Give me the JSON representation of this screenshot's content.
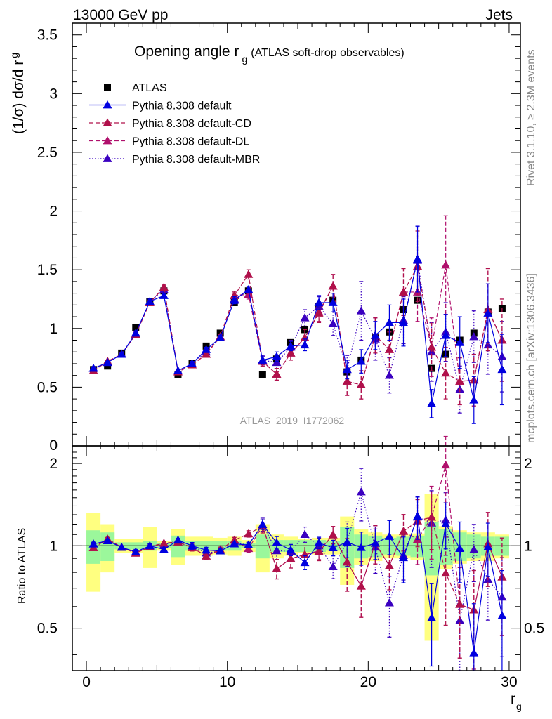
{
  "header": {
    "left": "13000 GeV pp",
    "right": "Jets"
  },
  "side_text": {
    "top": "Rivet 3.1.10, ≥ 2.3M events",
    "bottom": "mcplots.cern.ch [arXiv:1306.3436]"
  },
  "watermark": "ATLAS_2019_I1772062",
  "colors": {
    "atlas": "#000000",
    "default": "#0000e0",
    "cd": "#b0104a",
    "dl": "#b0106c",
    "mbr": "#3a00c0",
    "band_inner": "#9bf79b",
    "band_outer": "#ffff80"
  },
  "chart_data": {
    "type": "line",
    "title": "Opening angle r_g (ATLAS soft-drop observables)",
    "title_main": "Opening angle r",
    "title_sub": "g",
    "title_extra": "(ATLAS soft-drop observables)",
    "xlabel": "r_g",
    "xlabel_main": "r",
    "xlabel_sub": "g",
    "ylabel": "(1/σ) dσ/d r_g",
    "ylabel_main": "(1/σ) dσ/d r",
    "ylabel_sub": "g",
    "ratio_ylabel": "Ratio to ATLAS",
    "xlim": [
      -1,
      30.8
    ],
    "ylim": [
      0,
      3.6
    ],
    "ratio_ylim": [
      0.35,
      2.32
    ],
    "x_ticks": [
      0,
      10,
      20,
      30
    ],
    "y_ticks": [
      0.5,
      1,
      1.5,
      2,
      2.5,
      3,
      3.5
    ],
    "y_tick_labels": [
      "0.5",
      "1",
      "1.5",
      "2",
      "2.5",
      "3",
      "3.5"
    ],
    "y_zero_label": "0",
    "ratio_ticks": [
      0.5,
      1,
      2
    ],
    "ratio_tick_labels": [
      "0.5",
      "1",
      "2"
    ],
    "legend_position": "top-left",
    "x": [
      0.5,
      1.5,
      2.5,
      3.5,
      4.5,
      5.5,
      6.5,
      7.5,
      8.5,
      9.5,
      10.5,
      11.5,
      12.5,
      13.5,
      14.5,
      15.5,
      16.5,
      17.5,
      18.5,
      19.5,
      20.5,
      21.5,
      22.5,
      23.5,
      24.5,
      25.5,
      26.5,
      27.5,
      28.5,
      29.5
    ],
    "atlas": {
      "name": "ATLAS",
      "values": [
        0.65,
        0.68,
        0.79,
        1.01,
        1.23,
        1.32,
        0.61,
        0.7,
        0.85,
        0.96,
        1.22,
        1.32,
        0.61,
        0.74,
        0.88,
        0.99,
        1.19,
        1.24,
        0.63,
        0.73,
        0.92,
        0.97,
        1.16,
        1.24,
        0.66,
        0.78,
        0.9,
        0.96,
        1.14,
        1.17
      ],
      "rel_err_inner": [
        0.14,
        0.12,
        0.03,
        0.03,
        0.04,
        0.02,
        0.09,
        0.04,
        0.04,
        0.04,
        0.04,
        0.02,
        0.1,
        0.05,
        0.05,
        0.05,
        0.05,
        0.04,
        0.17,
        0.1,
        0.09,
        0.07,
        0.08,
        0.09,
        0.22,
        0.15,
        0.12,
        0.1,
        0.08,
        0.08
      ],
      "rel_err_outer": [
        0.32,
        0.2,
        0.06,
        0.06,
        0.17,
        0.04,
        0.15,
        0.08,
        0.08,
        0.07,
        0.08,
        0.05,
        0.2,
        0.1,
        0.08,
        0.06,
        0.07,
        0.07,
        0.28,
        0.15,
        0.12,
        0.1,
        0.1,
        0.11,
        0.55,
        0.18,
        0.14,
        0.12,
        0.12,
        0.1
      ]
    },
    "series": [
      {
        "name": "Pythia 8.308 default",
        "key": "default",
        "style": "solid",
        "values": [
          0.66,
          0.71,
          0.78,
          0.96,
          1.23,
          1.28,
          0.64,
          0.7,
          0.82,
          0.92,
          1.24,
          1.33,
          0.73,
          0.76,
          0.85,
          0.86,
          1.22,
          1.22,
          0.65,
          0.72,
          0.94,
          1.05,
          1.05,
          1.59,
          0.36,
          0.94,
          0.88,
          0.39,
          1.13,
          0.65
        ],
        "err": [
          0.01,
          0.01,
          0.01,
          0.02,
          0.02,
          0.02,
          0.01,
          0.02,
          0.02,
          0.02,
          0.03,
          0.03,
          0.03,
          0.04,
          0.04,
          0.05,
          0.06,
          0.08,
          0.08,
          0.1,
          0.12,
          0.15,
          0.2,
          0.28,
          0.12,
          0.18,
          0.22,
          0.2,
          0.25,
          0.3
        ]
      },
      {
        "name": "Pythia 8.308 default-CD",
        "key": "cd",
        "style": "dashed",
        "values": [
          0.64,
          0.72,
          0.78,
          0.95,
          1.22,
          1.35,
          0.63,
          0.69,
          0.78,
          0.93,
          1.28,
          1.46,
          0.72,
          0.61,
          0.79,
          0.92,
          1.13,
          1.36,
          0.55,
          0.52,
          0.94,
          0.82,
          1.31,
          1.53,
          0.84,
          0.62,
          0.55,
          0.56,
          1.16,
          0.9
        ],
        "err": [
          0.01,
          0.01,
          0.01,
          0.02,
          0.02,
          0.02,
          0.01,
          0.02,
          0.02,
          0.02,
          0.03,
          0.04,
          0.04,
          0.05,
          0.06,
          0.07,
          0.08,
          0.1,
          0.12,
          0.12,
          0.15,
          0.15,
          0.2,
          0.3,
          0.2,
          0.22,
          0.2,
          0.22,
          0.35,
          0.35
        ]
      },
      {
        "name": "Pythia 8.308 default-DL",
        "key": "dl",
        "style": "dashed",
        "values": [
          0.64,
          0.72,
          0.78,
          0.95,
          1.22,
          1.35,
          0.63,
          0.69,
          0.78,
          0.93,
          1.28,
          1.29,
          0.72,
          0.61,
          0.79,
          0.92,
          1.14,
          1.36,
          0.55,
          0.52,
          0.94,
          0.82,
          1.31,
          1.31,
          0.84,
          1.54,
          0.55,
          0.56,
          1.16,
          0.9
        ],
        "err": [
          0.01,
          0.01,
          0.01,
          0.02,
          0.02,
          0.02,
          0.01,
          0.02,
          0.02,
          0.02,
          0.03,
          0.04,
          0.04,
          0.05,
          0.06,
          0.07,
          0.08,
          0.1,
          0.12,
          0.12,
          0.15,
          0.15,
          0.2,
          0.25,
          0.25,
          0.42,
          0.2,
          0.22,
          0.35,
          0.35
        ]
      },
      {
        "name": "Pythia 8.308 default-MBR",
        "key": "mbr",
        "style": "dotted",
        "values": [
          0.66,
          0.71,
          0.78,
          0.95,
          1.23,
          1.33,
          0.64,
          0.7,
          0.8,
          0.92,
          1.25,
          1.33,
          0.73,
          0.71,
          0.84,
          1.09,
          1.19,
          1.04,
          0.65,
          1.15,
          0.91,
          0.6,
          1.07,
          1.58,
          0.8,
          0.97,
          0.48,
          0.93,
          0.86,
          0.76
        ],
        "err": [
          0.01,
          0.01,
          0.01,
          0.02,
          0.02,
          0.02,
          0.01,
          0.02,
          0.02,
          0.02,
          0.03,
          0.03,
          0.04,
          0.05,
          0.06,
          0.07,
          0.08,
          0.1,
          0.12,
          0.25,
          0.18,
          0.15,
          0.2,
          0.3,
          0.25,
          0.25,
          0.2,
          0.22,
          0.25,
          0.3
        ]
      }
    ]
  }
}
